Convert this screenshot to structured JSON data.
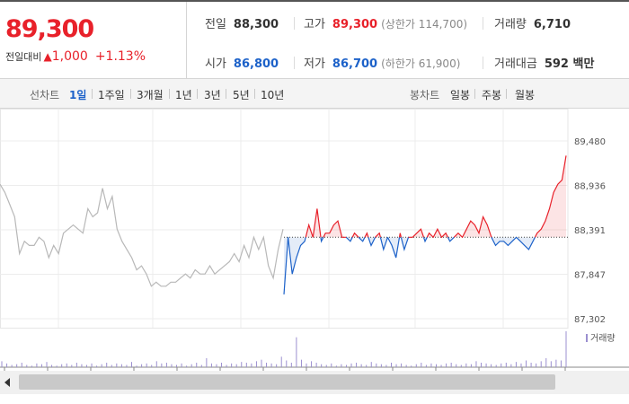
{
  "summary": {
    "price": "89,300",
    "change_label": "전일대비",
    "change_symbol": "▲",
    "change_value": "1,000",
    "change_pct": "+1.13%",
    "prev_close_label": "전일",
    "prev_close": "88,300",
    "high_label": "고가",
    "high": "89,300",
    "upper_limit": "(상한가 114,700)",
    "volume_label": "거래량",
    "volume": "6,710",
    "open_label": "시가",
    "open": "86,800",
    "low_label": "저가",
    "low": "86,700",
    "lower_limit": "(하한가 61,900)",
    "amount_label": "거래대금",
    "amount": "592 백만"
  },
  "tabs": {
    "line_chart_label": "선차트",
    "periods": [
      "1일",
      "1주일",
      "3개월",
      "1년",
      "3년",
      "5년",
      "10년"
    ],
    "active_period": "1일",
    "candle_chart_label": "봉차트",
    "candles": [
      "일봉",
      "주봉",
      "월봉"
    ]
  },
  "colors": {
    "up": "#e8212a",
    "down": "#1d62c9",
    "pre_reference": "#b8b8b8",
    "volume": "#9b8fd0"
  },
  "chart_data": {
    "type": "line",
    "reference_price": 88300,
    "yticks": [
      89480,
      88936,
      88391,
      87847,
      87302
    ],
    "ylim": [
      87302,
      89480
    ],
    "grid": true,
    "volume_legend": "거래량",
    "series": [
      {
        "values": [
          88950,
          88850,
          88700,
          88550,
          88100,
          88250,
          88200,
          88200,
          88300,
          88250,
          88050,
          88200,
          88100,
          88350,
          88400,
          88450,
          88400,
          88350,
          88650,
          88550,
          88600,
          88900,
          88650,
          88800,
          88400,
          88250,
          88150,
          88050,
          87900,
          87950,
          87850,
          87700,
          87750,
          87700,
          87700,
          87750,
          87750,
          87800,
          87850,
          87800,
          87900,
          87850,
          87850,
          87950,
          87850,
          87900,
          87950,
          88000,
          88100,
          88000,
          88200,
          88050,
          88300,
          88150,
          88300,
          87950,
          87800,
          88150,
          88400
        ]
      },
      {
        "values": [
          87600,
          88300,
          87850,
          88050,
          88200,
          88250,
          88450,
          88300,
          88650,
          88250,
          88350,
          88350,
          88450,
          88500,
          88300,
          88300,
          88250,
          88350,
          88300,
          88250,
          88350,
          88200,
          88300,
          88350,
          88150,
          88300,
          88200,
          88050,
          88350,
          88150,
          88300,
          88300,
          88350,
          88400,
          88250,
          88350,
          88300,
          88400,
          88300,
          88350,
          88250,
          88300,
          88350,
          88300,
          88400,
          88500,
          88450,
          88350,
          88550,
          88450,
          88300,
          88200,
          88250,
          88250,
          88200,
          88250,
          88300,
          88250,
          88200,
          88150,
          88250,
          88350,
          88400,
          88500,
          88650,
          88850,
          88950,
          89000,
          89300
        ]
      }
    ],
    "volume": [
      8,
      5,
      3,
      4,
      6,
      3,
      2,
      5,
      4,
      7,
      3,
      2,
      4,
      5,
      3,
      6,
      4,
      3,
      5,
      2,
      4,
      6,
      3,
      5,
      4,
      3,
      7,
      2,
      4,
      5,
      3,
      8,
      5,
      6,
      4,
      3,
      5,
      2,
      4,
      6,
      3,
      12,
      5,
      4,
      6,
      3,
      5,
      4,
      7,
      6,
      5,
      8,
      10,
      6,
      5,
      4,
      14,
      9,
      6,
      40,
      10,
      5,
      8,
      6,
      4,
      3,
      5,
      2,
      4,
      3,
      5,
      6,
      4,
      3,
      7,
      5,
      4,
      3,
      6,
      4,
      5,
      3,
      2,
      4,
      6,
      3,
      5,
      4,
      3,
      5,
      6,
      4,
      3,
      5,
      4,
      8,
      6,
      5,
      4,
      3,
      5,
      6,
      4,
      7,
      5,
      9,
      6,
      5,
      8,
      12,
      8,
      10,
      9,
      48
    ]
  }
}
